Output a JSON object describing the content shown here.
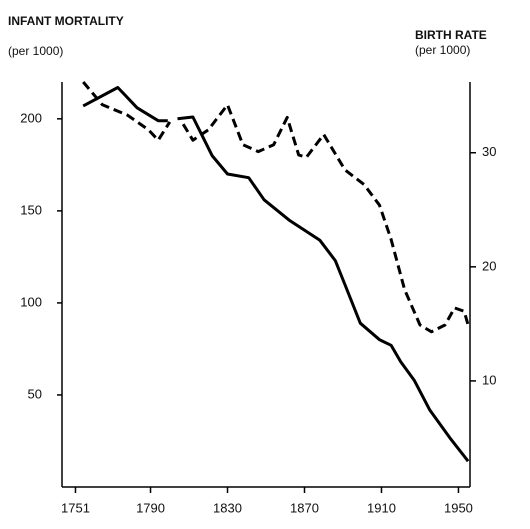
{
  "chart_data": {
    "type": "line",
    "y_label": "INFANT MORTALITY",
    "y_unit": "(per 1000)",
    "y2_label": "BIRTH RATE",
    "y2_unit": "(per 1000)",
    "xlim": [
      1744,
      1956
    ],
    "xticks": [
      1751,
      1790,
      1830,
      1870,
      1910,
      1950
    ],
    "ylim": [
      0,
      220
    ],
    "yticks": [
      50,
      100,
      150,
      200
    ],
    "y2lim": [
      0.7,
      36.2
    ],
    "y2ticks": [
      10,
      20,
      30
    ],
    "series": [
      {
        "name": "Infant mortality",
        "color": "#000000",
        "dash": false,
        "x": [
          1755,
          1773,
          1783,
          1794,
          1799,
          null,
          1804,
          1812,
          1822,
          1830,
          1841,
          1849,
          1862,
          1878,
          1886,
          1891,
          1899,
          1909,
          1915,
          1920,
          1927,
          1935,
          1946,
          1955
        ],
        "values": [
          207,
          217,
          206,
          199,
          199,
          null,
          200,
          201,
          180,
          170,
          168,
          156,
          145,
          134,
          123,
          110,
          89,
          80,
          77,
          68,
          58,
          42,
          26,
          14
        ]
      },
      {
        "name": "Birth rate",
        "color": "#000000",
        "dash": true,
        "axis": "y2",
        "x": [
          1755,
          1765,
          1778,
          1789,
          1794,
          1800,
          null,
          1807,
          1812,
          1820,
          1830,
          1838,
          1846,
          1854,
          1861,
          1867,
          1871,
          1880,
          1891,
          1901,
          1909,
          1915,
          1922,
          1930,
          1936,
          1943,
          1948,
          1953,
          1955
        ],
        "values": [
          36.2,
          34.2,
          33.3,
          32.0,
          31.1,
          32.7,
          null,
          32.5,
          31.1,
          32.0,
          34.2,
          30.7,
          30.1,
          30.7,
          33.1,
          29.8,
          29.6,
          31.6,
          28.5,
          27.2,
          25.4,
          22.4,
          18.0,
          14.9,
          14.3,
          14.9,
          16.4,
          16.1,
          14.9
        ]
      }
    ]
  }
}
